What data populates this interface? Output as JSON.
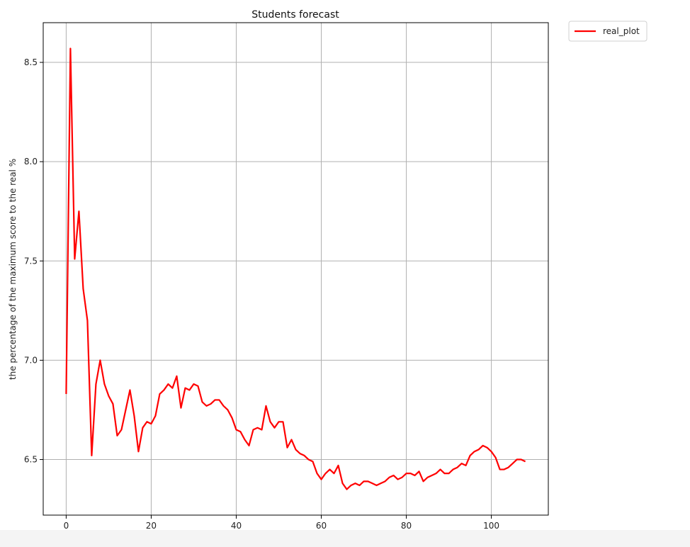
{
  "chart_data": {
    "type": "line",
    "title": "Students forecast",
    "xlabel": "",
    "ylabel": "the percentage of the maximum score to the real %",
    "xlim": [
      -5.4,
      113.4
    ],
    "ylim": [
      6.22,
      8.7
    ],
    "xticks": [
      0,
      20,
      40,
      60,
      80,
      100
    ],
    "xtick_labels": [
      "0",
      "20",
      "40",
      "60",
      "80",
      "100"
    ],
    "yticks": [
      6.5,
      7.0,
      7.5,
      8.0,
      8.5
    ],
    "ytick_labels": [
      "6.5",
      "7.0",
      "7.5",
      "8.0",
      "8.5"
    ],
    "grid": true,
    "legend_position": "outside-top-right",
    "series": [
      {
        "name": "real_plot",
        "color": "#ff0000",
        "x": [
          0,
          1,
          2,
          3,
          4,
          5,
          6,
          7,
          8,
          9,
          10,
          11,
          12,
          13,
          14,
          15,
          16,
          17,
          18,
          19,
          20,
          21,
          22,
          23,
          24,
          25,
          26,
          27,
          28,
          29,
          30,
          31,
          32,
          33,
          34,
          35,
          36,
          37,
          38,
          39,
          40,
          41,
          42,
          43,
          44,
          45,
          46,
          47,
          48,
          49,
          50,
          51,
          52,
          53,
          54,
          55,
          56,
          57,
          58,
          59,
          60,
          61,
          62,
          63,
          64,
          65,
          66,
          67,
          68,
          69,
          70,
          71,
          72,
          73,
          74,
          75,
          76,
          77,
          78,
          79,
          80,
          81,
          82,
          83,
          84,
          85,
          86,
          87,
          88,
          89,
          90,
          91,
          92,
          93,
          94,
          95,
          96,
          97,
          98,
          99,
          100,
          101,
          102,
          103,
          104,
          105,
          106,
          107,
          108
        ],
        "y": [
          6.83,
          8.57,
          7.51,
          7.75,
          7.36,
          7.2,
          6.52,
          6.88,
          7.0,
          6.88,
          6.82,
          6.78,
          6.62,
          6.65,
          6.75,
          6.85,
          6.72,
          6.54,
          6.66,
          6.69,
          6.68,
          6.72,
          6.83,
          6.85,
          6.88,
          6.86,
          6.92,
          6.76,
          6.86,
          6.85,
          6.88,
          6.87,
          6.79,
          6.77,
          6.78,
          6.8,
          6.8,
          6.77,
          6.75,
          6.71,
          6.65,
          6.64,
          6.6,
          6.57,
          6.65,
          6.66,
          6.65,
          6.77,
          6.69,
          6.66,
          6.69,
          6.69,
          6.56,
          6.6,
          6.55,
          6.53,
          6.52,
          6.5,
          6.49,
          6.43,
          6.4,
          6.43,
          6.45,
          6.43,
          6.47,
          6.38,
          6.35,
          6.37,
          6.38,
          6.37,
          6.39,
          6.39,
          6.38,
          6.37,
          6.38,
          6.39,
          6.41,
          6.42,
          6.4,
          6.41,
          6.43,
          6.43,
          6.42,
          6.44,
          6.39,
          6.41,
          6.42,
          6.43,
          6.45,
          6.43,
          6.43,
          6.45,
          6.46,
          6.48,
          6.47,
          6.52,
          6.54,
          6.55,
          6.57,
          6.56,
          6.54,
          6.51,
          6.45,
          6.45,
          6.46,
          6.48,
          6.5,
          6.5,
          6.49
        ]
      }
    ]
  }
}
